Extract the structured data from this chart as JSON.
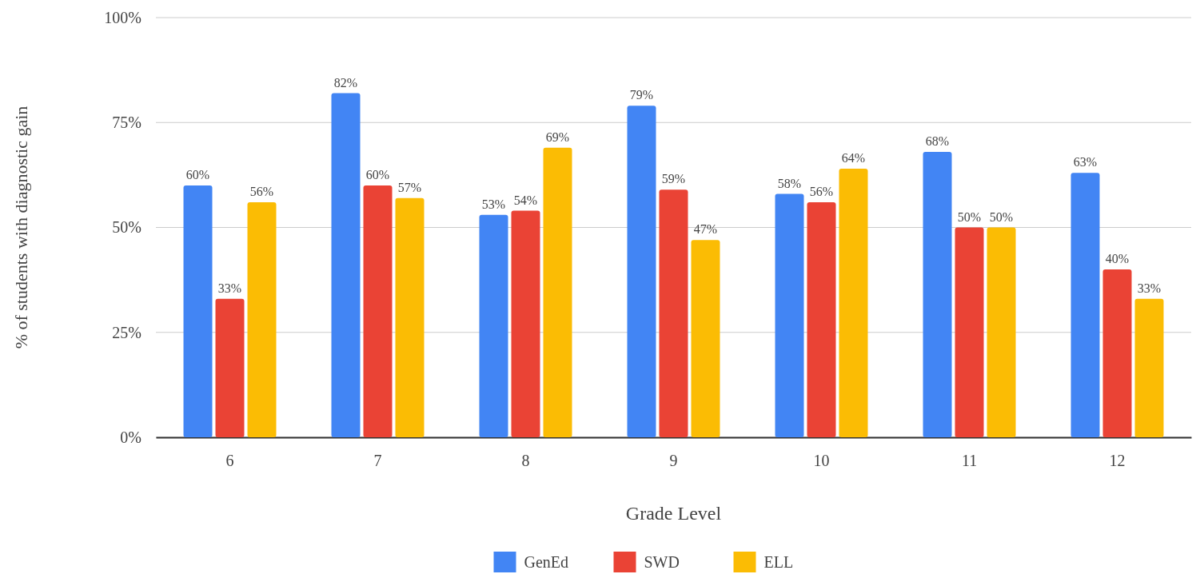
{
  "chart_data": {
    "type": "bar",
    "xlabel": "Grade Level",
    "ylabel": "% of students with diagnostic gain",
    "categories": [
      "6",
      "7",
      "8",
      "9",
      "10",
      "11",
      "12"
    ],
    "series": [
      {
        "name": "GenEd",
        "color": "#4285f4",
        "values": [
          60,
          82,
          53,
          79,
          58,
          68,
          63
        ],
        "value_labels": [
          "60%",
          "82%",
          "53%",
          "79%",
          "58%",
          "68%",
          "63%"
        ]
      },
      {
        "name": "SWD",
        "color": "#ea4335",
        "values": [
          33,
          60,
          54,
          59,
          56,
          50,
          40
        ],
        "value_labels": [
          "33%",
          "60%",
          "54%",
          "59%",
          "56%",
          "50%",
          "40%"
        ]
      },
      {
        "name": "ELL",
        "color": "#fbbc04",
        "values": [
          56,
          57,
          69,
          47,
          64,
          50,
          33
        ],
        "value_labels": [
          "56%",
          "57%",
          "69%",
          "47%",
          "64%",
          "50%",
          "33%"
        ]
      }
    ],
    "ylim": [
      0,
      100
    ],
    "yticks": [
      {
        "value": 0,
        "label": "0%"
      },
      {
        "value": 25,
        "label": "25%"
      },
      {
        "value": 50,
        "label": "50%"
      },
      {
        "value": 75,
        "label": "75%"
      },
      {
        "value": 100,
        "label": "100%"
      }
    ],
    "grid": "y",
    "legend": "bottom"
  }
}
